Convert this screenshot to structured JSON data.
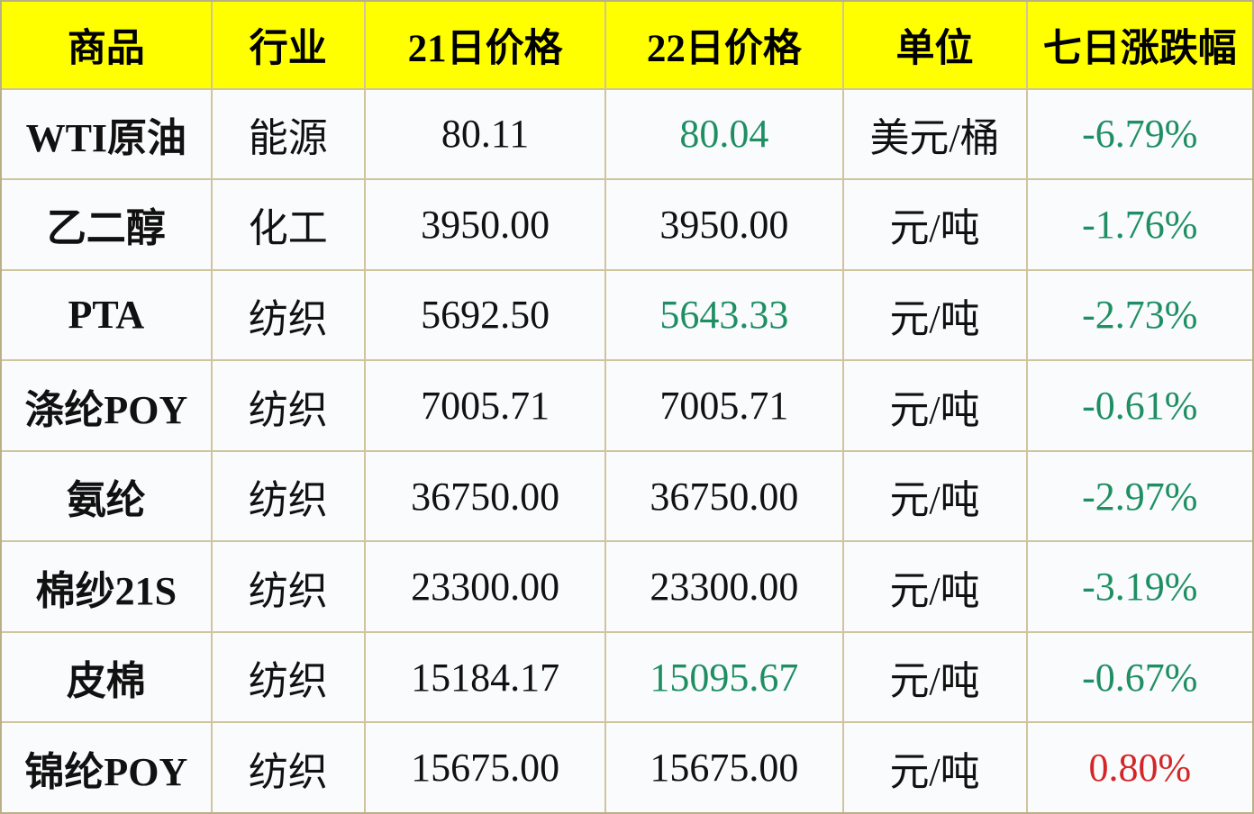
{
  "colors": {
    "header_bg": "#ffff00",
    "grid_line": "#cfc49c",
    "cell_bg": "#fafbfd",
    "down_green": "#1f8f63",
    "up_red": "#d42626",
    "text": "#111111"
  },
  "chart_data": {
    "type": "table",
    "columns": [
      "商品",
      "行业",
      "21日价格",
      "22日价格",
      "单位",
      "七日涨跌幅"
    ],
    "rows": [
      {
        "cells": [
          "WTI原油",
          "能源",
          "80.11",
          "80.04",
          "美元/桶",
          "-6.79%"
        ],
        "day22_class": "green",
        "change_class": "green"
      },
      {
        "cells": [
          "乙二醇",
          "化工",
          "3950.00",
          "3950.00",
          "元/吨",
          "-1.76%"
        ],
        "day22_class": "black",
        "change_class": "green"
      },
      {
        "cells": [
          "PTA",
          "纺织",
          "5692.50",
          "5643.33",
          "元/吨",
          "-2.73%"
        ],
        "day22_class": "green",
        "change_class": "green"
      },
      {
        "cells": [
          "涤纶POY",
          "纺织",
          "7005.71",
          "7005.71",
          "元/吨",
          "-0.61%"
        ],
        "day22_class": "black",
        "change_class": "green"
      },
      {
        "cells": [
          "氨纶",
          "纺织",
          "36750.00",
          "36750.00",
          "元/吨",
          "-2.97%"
        ],
        "day22_class": "black",
        "change_class": "green"
      },
      {
        "cells": [
          "棉纱21S",
          "纺织",
          "23300.00",
          "23300.00",
          "元/吨",
          "-3.19%"
        ],
        "day22_class": "black",
        "change_class": "green"
      },
      {
        "cells": [
          "皮棉",
          "纺织",
          "15184.17",
          "15095.67",
          "元/吨",
          "-0.67%"
        ],
        "day22_class": "green",
        "change_class": "green"
      },
      {
        "cells": [
          "锦纶POY",
          "纺织",
          "15675.00",
          "15675.00",
          "元/吨",
          "0.80%"
        ],
        "day22_class": "black",
        "change_class": "red"
      }
    ]
  }
}
